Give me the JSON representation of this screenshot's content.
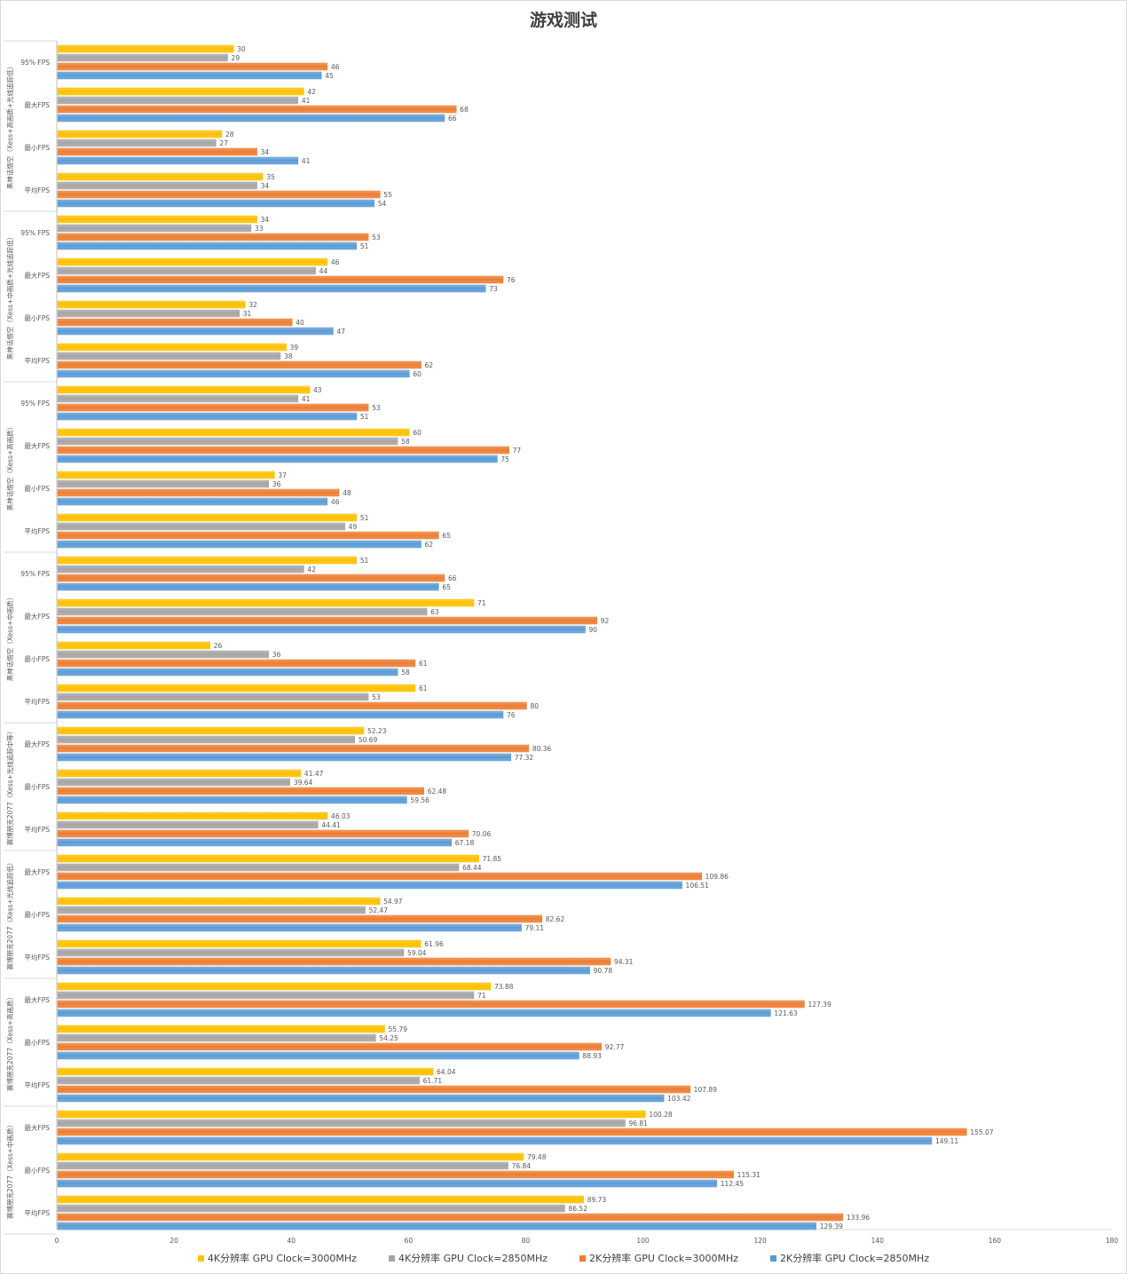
{
  "chart_data": {
    "type": "bar",
    "orientation": "horizontal",
    "title": "游戏测试",
    "xlim": [
      0,
      180
    ],
    "xticks": [
      0,
      20,
      40,
      60,
      80,
      100,
      120,
      140,
      160,
      180
    ],
    "grid": false,
    "legend_position": "bottom",
    "series": [
      {
        "name": "4K分辨率 GPU Clock=3000MHz",
        "color": "#ffc000"
      },
      {
        "name": "4K分辨率 GPU Clock=2850MHz",
        "color": "#a5a5a5"
      },
      {
        "name": "2K分辨率 GPU Clock=3000MHz",
        "color": "#ed7d31"
      },
      {
        "name": "2K分辨率 GPU Clock=2850MHz",
        "color": "#5b9bd5"
      }
    ],
    "groups": [
      {
        "label": "黑神话悟空（Xess+高画质+光线追踪低）",
        "items": [
          {
            "label": "95% FPS",
            "values": [
              30,
              29,
              46,
              45
            ]
          },
          {
            "label": "最大FPS",
            "values": [
              42,
              41,
              68,
              66
            ]
          },
          {
            "label": "最小FPS",
            "values": [
              28,
              27,
              34,
              41
            ]
          },
          {
            "label": "平均FPS",
            "values": [
              35,
              34,
              55,
              54
            ]
          }
        ]
      },
      {
        "label": "黑神话悟空（Xess+中画质+光线追踪低）",
        "items": [
          {
            "label": "95% FPS",
            "values": [
              34,
              33,
              53,
              51
            ]
          },
          {
            "label": "最大FPS",
            "values": [
              46,
              44,
              76,
              73
            ]
          },
          {
            "label": "最小FPS",
            "values": [
              32,
              31,
              40,
              47
            ]
          },
          {
            "label": "平均FPS",
            "values": [
              39,
              38,
              62,
              60
            ]
          }
        ]
      },
      {
        "label": "黑神话悟空（Xess+高画质）",
        "items": [
          {
            "label": "95% FPS",
            "values": [
              43,
              41,
              53,
              51
            ]
          },
          {
            "label": "最大FPS",
            "values": [
              60,
              58,
              77,
              75
            ]
          },
          {
            "label": "最小FPS",
            "values": [
              37,
              36,
              48,
              46
            ]
          },
          {
            "label": "平均FPS",
            "values": [
              51,
              49,
              65,
              62
            ]
          }
        ]
      },
      {
        "label": "黑神话悟空（Xess+中画质）",
        "items": [
          {
            "label": "95% FPS",
            "values": [
              51,
              42,
              66,
              65
            ]
          },
          {
            "label": "最大FPS",
            "values": [
              71,
              63,
              92,
              90
            ]
          },
          {
            "label": "最小FPS",
            "values": [
              26,
              36,
              61,
              58
            ]
          },
          {
            "label": "平均FPS",
            "values": [
              61,
              53,
              80,
              76
            ]
          }
        ]
      },
      {
        "label": "赛博朋克2077（Xess+光线追踪中等）",
        "items": [
          {
            "label": "最大FPS",
            "values": [
              52.23,
              50.69,
              80.36,
              77.32
            ]
          },
          {
            "label": "最小FPS",
            "values": [
              41.47,
              39.64,
              62.48,
              59.56
            ]
          },
          {
            "label": "平均FPS",
            "values": [
              46.03,
              44.41,
              70.06,
              67.18
            ]
          }
        ]
      },
      {
        "label": "赛博朋克2077（Xess+光线追踪低）",
        "items": [
          {
            "label": "最大FPS",
            "values": [
              71.85,
              68.44,
              109.86,
              106.51
            ]
          },
          {
            "label": "最小FPS",
            "values": [
              54.97,
              52.47,
              82.62,
              79.11
            ]
          },
          {
            "label": "平均FPS",
            "values": [
              61.96,
              59.04,
              94.31,
              90.78
            ]
          }
        ]
      },
      {
        "label": "赛博朋克2077（Xess+高画质）",
        "items": [
          {
            "label": "最大FPS",
            "values": [
              73.88,
              71,
              127.39,
              121.63
            ]
          },
          {
            "label": "最小FPS",
            "values": [
              55.79,
              54.25,
              92.77,
              88.93
            ]
          },
          {
            "label": "平均FPS",
            "values": [
              64.04,
              61.71,
              107.89,
              103.42
            ]
          }
        ]
      },
      {
        "label": "赛博朋克2077（Xess+中画质）",
        "items": [
          {
            "label": "最大FPS",
            "values": [
              100.28,
              96.81,
              155.07,
              149.11
            ]
          },
          {
            "label": "最小FPS",
            "values": [
              79.48,
              76.84,
              115.31,
              112.45
            ]
          },
          {
            "label": "平均FPS",
            "values": [
              89.73,
              86.52,
              133.96,
              129.39
            ]
          }
        ]
      }
    ]
  }
}
